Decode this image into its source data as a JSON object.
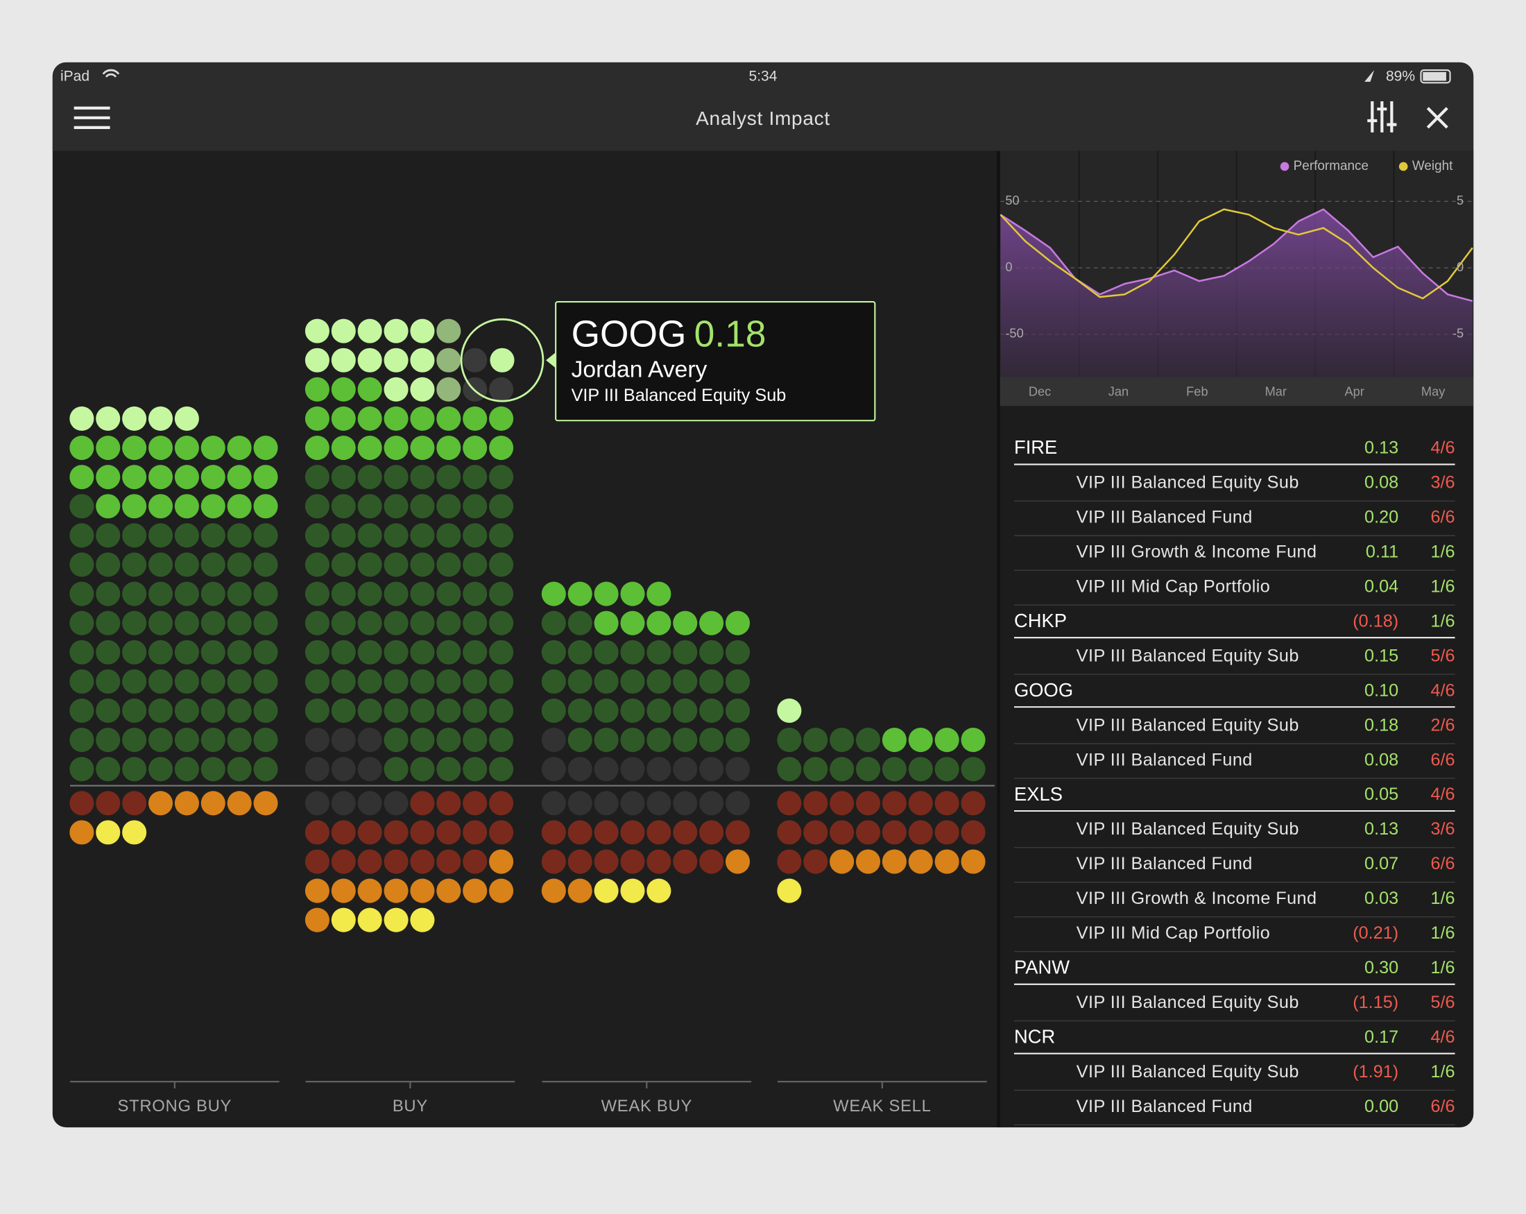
{
  "status_bar": {
    "device": "iPad",
    "time": "5:34",
    "battery": "89%"
  },
  "header": {
    "title": "Analyst Impact"
  },
  "dot_chart": {
    "categories": [
      "STRONG BUY",
      "BUY",
      "WEAK BUY",
      "WEAK SELL"
    ],
    "tooltip": {
      "ticker": "GOOG",
      "value": "0.18",
      "analyst": "Jordan Avery",
      "fund": "VIP III Balanced Equity Sub"
    }
  },
  "chart_data": {
    "type": "line",
    "x_labels": [
      "Dec",
      "Jan",
      "Feb",
      "Mar",
      "Apr",
      "May"
    ],
    "series": [
      {
        "name": "Performance",
        "color": "#c77ae0",
        "values": [
          40,
          28,
          15,
          -8,
          -20,
          -12,
          -8,
          -2,
          -10,
          -6,
          5,
          18,
          35,
          44,
          28,
          8,
          16,
          -4,
          -20,
          -25
        ]
      },
      {
        "name": "Weight",
        "color": "#e0c93a",
        "axis": "y2",
        "values": [
          4,
          2,
          0.5,
          -0.8,
          -2.2,
          -2,
          -1,
          1,
          3.5,
          4.4,
          4,
          3,
          2.5,
          3,
          1.8,
          0,
          -1.5,
          -2.3,
          -1,
          1.5
        ]
      }
    ],
    "ylim": [
      -82,
      88
    ],
    "yticks": [
      50,
      0,
      -50
    ],
    "y2lim": [
      -8.2,
      8.8
    ],
    "y2ticks": [
      5,
      0,
      -5
    ],
    "grid": true
  },
  "holdings": [
    {
      "ticker": "FIRE",
      "value": "0.13",
      "score": "4/6",
      "funds": [
        {
          "name": "VIP III Balanced Equity Sub",
          "value": "0.08",
          "score": "3/6"
        },
        {
          "name": "VIP III Balanced Fund",
          "value": "0.20",
          "score": "6/6"
        },
        {
          "name": "VIP III Growth & Income Fund",
          "value": "0.11",
          "score": "1/6"
        },
        {
          "name": "VIP III Mid Cap Portfolio",
          "value": "0.04",
          "score": "1/6"
        }
      ]
    },
    {
      "ticker": "CHKP",
      "value": "(0.18)",
      "score": "1/6",
      "funds": [
        {
          "name": "VIP III Balanced Equity Sub",
          "value": "0.15",
          "score": "5/6"
        }
      ]
    },
    {
      "ticker": "GOOG",
      "value": "0.10",
      "score": "4/6",
      "funds": [
        {
          "name": "VIP III Balanced Equity Sub",
          "value": "0.18",
          "score": "2/6"
        },
        {
          "name": "VIP III Balanced Fund",
          "value": "0.08",
          "score": "6/6"
        }
      ]
    },
    {
      "ticker": "EXLS",
      "value": "0.05",
      "score": "4/6",
      "funds": [
        {
          "name": "VIP III Balanced Equity Sub",
          "value": "0.13",
          "score": "3/6"
        },
        {
          "name": "VIP III Balanced Fund",
          "value": "0.07",
          "score": "6/6"
        },
        {
          "name": "VIP III Growth & Income Fund",
          "value": "0.03",
          "score": "1/6"
        },
        {
          "name": "VIP III Mid Cap Portfolio",
          "value": "(0.21)",
          "score": "1/6"
        }
      ]
    },
    {
      "ticker": "PANW",
      "value": "0.30",
      "score": "1/6",
      "funds": [
        {
          "name": "VIP III Balanced Equity Sub",
          "value": "(1.15)",
          "score": "5/6"
        }
      ]
    },
    {
      "ticker": "NCR",
      "value": "0.17",
      "score": "4/6",
      "funds": [
        {
          "name": "VIP III Balanced Equity Sub",
          "value": "(1.91)",
          "score": "1/6"
        },
        {
          "name": "VIP III Balanced Fund",
          "value": "0.00",
          "score": "6/6"
        }
      ]
    }
  ]
}
